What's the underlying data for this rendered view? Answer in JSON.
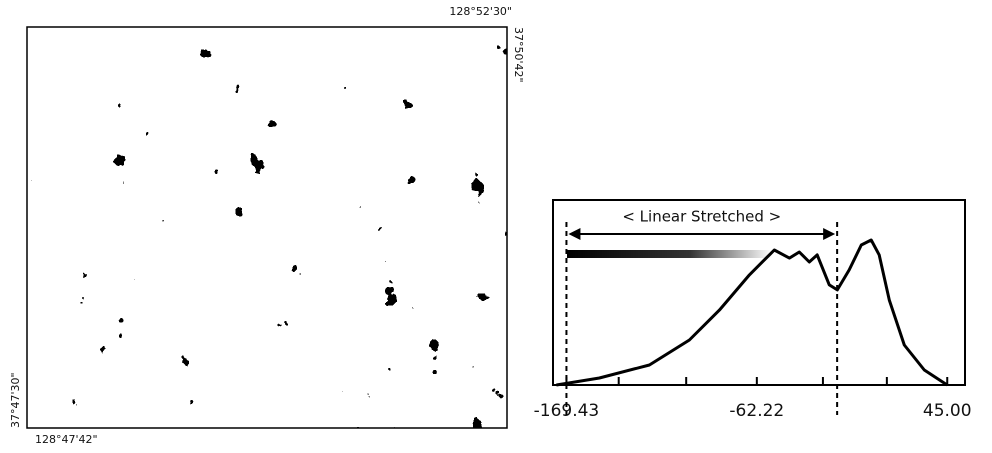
{
  "map": {
    "top_right_label": "128°52'30\"",
    "right_label": "37°50'42\"",
    "left_label": "37°47'30\"",
    "bottom_left_label": "128°47'42\""
  },
  "chart_data": {
    "type": "line",
    "annotation": "< Linear Stretched >",
    "x": [
      -175.1,
      -150.9,
      -122.7,
      -100.2,
      -83.3,
      -66.4,
      -52.4,
      -43.9,
      -38.3,
      -32.7,
      -28.2,
      -21.4,
      -16.9,
      -10.2,
      -3.4,
      2.2,
      6.7,
      12.4,
      20.8,
      32.1,
      45.0
    ],
    "y": [
      0,
      3.8,
      10.8,
      24.3,
      40.5,
      59.5,
      73.0,
      68.6,
      71.9,
      66.5,
      70.3,
      54.1,
      51.4,
      62.2,
      75.7,
      78.4,
      70.3,
      45.9,
      21.6,
      8.1,
      0
    ],
    "color": "#000000",
    "xlim": [
      -177,
      55
    ],
    "ylim": [
      0,
      100
    ],
    "xticks": [
      {
        "value": -169.43,
        "label": "-169.43"
      },
      {
        "value": -62.22,
        "label": "-62.22"
      },
      {
        "value": 45.0,
        "label": "45.00"
      }
    ],
    "minor_xticks": [
      -140,
      -102,
      -25,
      11
    ],
    "stretch_range": [
      -169.43,
      -17
    ]
  }
}
